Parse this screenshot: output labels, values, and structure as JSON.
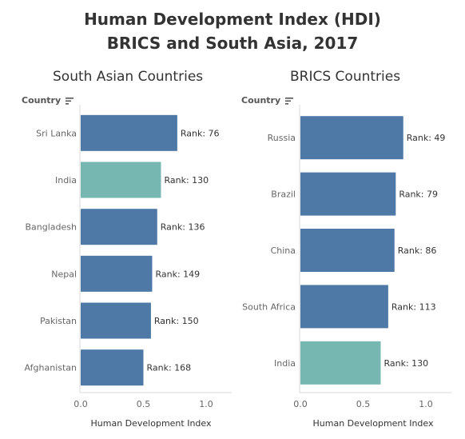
{
  "title": "Human Development Index (HDI)",
  "subtitle": "BRICS and South Asia, 2017",
  "colors": {
    "default_bar": "#4e79a7",
    "highlight_bar": "#76b7b2",
    "axis": "#d8d8d8",
    "text": "#333333"
  },
  "chart_data": [
    {
      "type": "bar",
      "orientation": "horizontal",
      "title": "South Asian Countries",
      "row_header": "Country",
      "xlabel": "Human Development Index",
      "xlim": [
        0,
        1.2
      ],
      "xticks": [
        "0.0",
        "0.5",
        "1.0"
      ],
      "categories": [
        "Sri Lanka",
        "India",
        "Bangladesh",
        "Nepal",
        "Pakistan",
        "Afghanistan"
      ],
      "values": [
        0.77,
        0.64,
        0.61,
        0.57,
        0.56,
        0.5
      ],
      "labels": [
        "Rank: 76",
        "Rank: 130",
        "Rank: 136",
        "Rank: 149",
        "Rank: 150",
        "Rank: 168"
      ],
      "highlight": [
        "India"
      ],
      "grid": false
    },
    {
      "type": "bar",
      "orientation": "horizontal",
      "title": "BRICS Countries",
      "row_header": "Country",
      "xlabel": "Human Development Index",
      "xlim": [
        0,
        1.2
      ],
      "xticks": [
        "0.0",
        "0.5",
        "1.0"
      ],
      "categories": [
        "Russia",
        "Brazil",
        "China",
        "South Africa",
        "India"
      ],
      "values": [
        0.82,
        0.76,
        0.75,
        0.7,
        0.64
      ],
      "labels": [
        "Rank: 49",
        "Rank: 79",
        "Rank: 86",
        "Rank: 113",
        "Rank: 130"
      ],
      "highlight": [
        "India"
      ],
      "grid": false
    }
  ]
}
